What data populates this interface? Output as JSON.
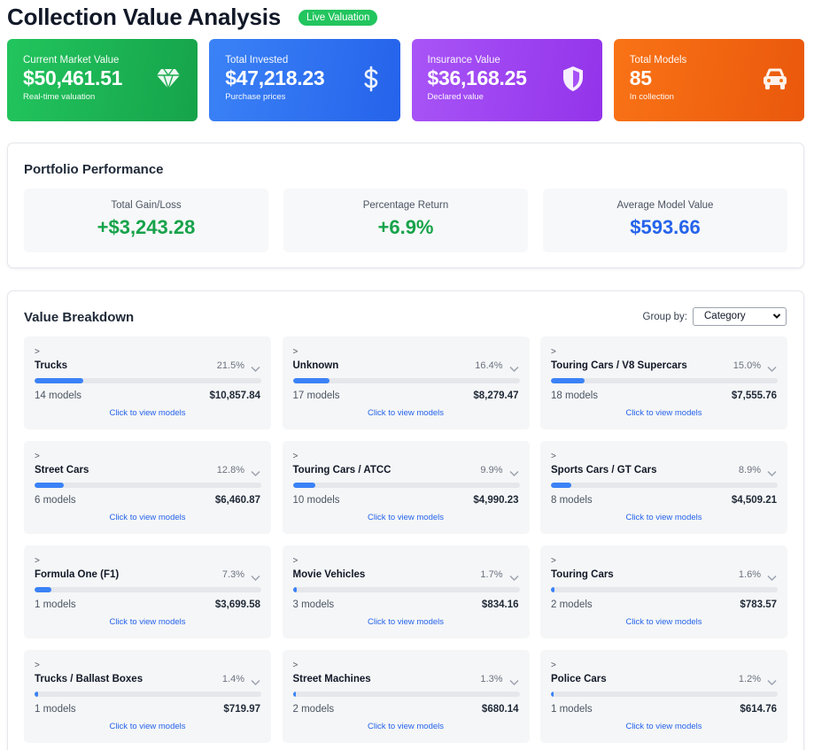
{
  "header": {
    "title": "Collection Value Analysis",
    "badge": "Live Valuation"
  },
  "stats": [
    {
      "label": "Current Market Value",
      "value": "$50,461.51",
      "sub": "Real-time valuation",
      "icon": "diamond-icon",
      "color": "#22c55e"
    },
    {
      "label": "Total Invested",
      "value": "$47,218.23",
      "sub": "Purchase prices",
      "icon": "dollar-icon",
      "color": "#3b82f6"
    },
    {
      "label": "Insurance Value",
      "value": "$36,168.25",
      "sub": "Declared value",
      "icon": "shield-icon",
      "color": "#a855f7"
    },
    {
      "label": "Total Models",
      "value": "85",
      "sub": "In collection",
      "icon": "car-icon",
      "color": "#f97316"
    }
  ],
  "performance": {
    "title": "Portfolio Performance",
    "items": [
      {
        "label": "Total Gain/Loss",
        "value": "+$3,243.28"
      },
      {
        "label": "Percentage Return",
        "value": "+6.9%"
      },
      {
        "label": "Average Model Value",
        "value": "$593.66"
      }
    ]
  },
  "breakdown": {
    "title": "Value Breakdown",
    "group_label": "Group by:",
    "group_value": "Category",
    "categories": [
      {
        "arrow": ">",
        "name": "Trucks",
        "pct": "21.5%",
        "share": 0.215,
        "count": "14 models",
        "total": "$10,857.84",
        "link": "Click to view models"
      },
      {
        "arrow": ">",
        "name": "Unknown",
        "pct": "16.4%",
        "share": 0.164,
        "count": "17 models",
        "total": "$8,279.47",
        "link": "Click to view models"
      },
      {
        "arrow": ">",
        "name": "Touring Cars / V8 Supercars",
        "pct": "15.0%",
        "share": 0.15,
        "count": "18 models",
        "total": "$7,555.76",
        "link": "Click to view models"
      },
      {
        "arrow": ">",
        "name": "Street Cars",
        "pct": "12.8%",
        "share": 0.128,
        "count": "6 models",
        "total": "$6,460.87",
        "link": "Click to view models"
      },
      {
        "arrow": ">",
        "name": "Touring Cars / ATCC",
        "pct": "9.9%",
        "share": 0.099,
        "count": "10 models",
        "total": "$4,990.23",
        "link": "Click to view models"
      },
      {
        "arrow": ">",
        "name": "Sports Cars / GT Cars",
        "pct": "8.9%",
        "share": 0.089,
        "count": "8 models",
        "total": "$4,509.21",
        "link": "Click to view models"
      },
      {
        "arrow": ">",
        "name": "Formula One (F1)",
        "pct": "7.3%",
        "share": 0.073,
        "count": "1 models",
        "total": "$3,699.58",
        "link": "Click to view models"
      },
      {
        "arrow": ">",
        "name": "Movie Vehicles",
        "pct": "1.7%",
        "share": 0.017,
        "count": "3 models",
        "total": "$834.16",
        "link": "Click to view models"
      },
      {
        "arrow": ">",
        "name": "Touring Cars",
        "pct": "1.6%",
        "share": 0.016,
        "count": "2 models",
        "total": "$783.57",
        "link": "Click to view models"
      },
      {
        "arrow": ">",
        "name": "Trucks / Ballast Boxes",
        "pct": "1.4%",
        "share": 0.014,
        "count": "1 models",
        "total": "$719.97",
        "link": "Click to view models"
      },
      {
        "arrow": ">",
        "name": "Street Machines",
        "pct": "1.3%",
        "share": 0.013,
        "count": "2 models",
        "total": "$680.14",
        "link": "Click to view models"
      },
      {
        "arrow": ">",
        "name": "Police Cars",
        "pct": "1.2%",
        "share": 0.012,
        "count": "1 models",
        "total": "$614.76",
        "link": "Click to view models"
      }
    ]
  }
}
